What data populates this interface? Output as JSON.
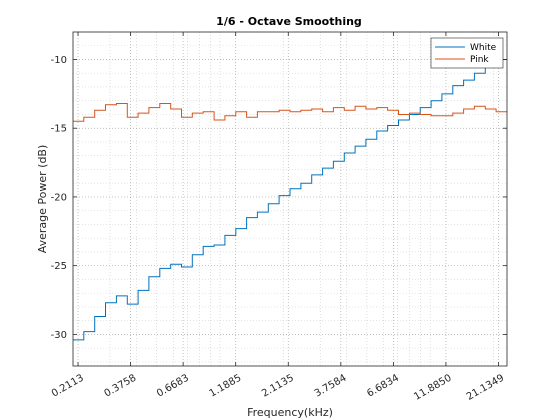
{
  "chart_data": {
    "type": "line",
    "title": "1/6 - Octave Smoothing",
    "xlabel": "Frequency(kHz)",
    "ylabel": "Average Power (dB)",
    "x_scale": "log",
    "xlim": [
      0.2,
      23.2
    ],
    "ylim": [
      -32.3,
      -8
    ],
    "xticks": [
      "0.2113",
      "0.3758",
      "0.6683",
      "1.1885",
      "2.1135",
      "3.7584",
      "6.6834",
      "11.8850",
      "21.1349"
    ],
    "yticks": [
      -30,
      -25,
      -20,
      -15,
      -10
    ],
    "grid": "dotted",
    "legend_position": "top-right",
    "series": [
      {
        "name": "White",
        "color": "#0072BD",
        "values": [
          -30.4,
          -29.8,
          -28.7,
          -27.7,
          -27.2,
          -27.8,
          -26.8,
          -25.8,
          -25.2,
          -24.9,
          -25.1,
          -24.2,
          -23.6,
          -23.5,
          -22.8,
          -22.3,
          -21.5,
          -21.1,
          -20.5,
          -19.9,
          -19.4,
          -19.0,
          -18.4,
          -17.9,
          -17.4,
          -16.8,
          -16.3,
          -15.8,
          -15.2,
          -14.8,
          -14.4,
          -14.0,
          -13.5,
          -13.0,
          -12.5,
          -11.9,
          -11.5,
          -11.0,
          -10.5,
          -10.0
        ]
      },
      {
        "name": "Pink",
        "color": "#D95319",
        "values": [
          -14.5,
          -14.2,
          -13.7,
          -13.3,
          -13.2,
          -14.2,
          -13.9,
          -13.5,
          -13.2,
          -13.6,
          -14.2,
          -13.9,
          -13.8,
          -14.4,
          -14.1,
          -13.8,
          -14.2,
          -13.8,
          -13.8,
          -13.7,
          -13.8,
          -13.7,
          -13.6,
          -13.8,
          -13.5,
          -13.7,
          -13.4,
          -13.6,
          -13.5,
          -13.7,
          -14.0,
          -13.9,
          -14.0,
          -14.1,
          -14.1,
          -13.9,
          -13.6,
          -13.4,
          -13.6,
          -13.8
        ]
      }
    ]
  }
}
